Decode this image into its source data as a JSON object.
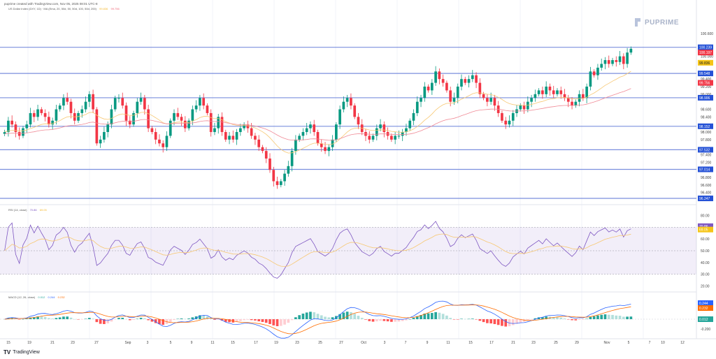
{
  "header": {
    "credit": "puprime created with TradingView.com, Nov 05, 2025 08:01 UTC-8",
    "main_legend": "US Dollar Index (DXY, 1D) · MA (Ema, 20, 50d, 50, 50d, 100, 50d, 200)",
    "ma_values": [
      {
        "text": "99.836",
        "color": "#f5b82e"
      },
      {
        "text": "99.756",
        "color": "#f06a7a"
      }
    ]
  },
  "logo": {
    "text": "PUPRIME"
  },
  "footer": {
    "brand": "TradingView"
  },
  "panes": {
    "rsi": {
      "label": "RSI (14, close)",
      "value": "70.86",
      "ma": "69.05",
      "value_color": "#7e57c2",
      "ma_color": "#f5b82e"
    },
    "macd": {
      "label": "MACD (12, 26, close)",
      "hist": "0.012",
      "macd": "0.244",
      "signal": "0.232",
      "hist_color": "#26a69a",
      "macd_color": "#2962ff",
      "signal_color": "#ff6d00"
    }
  },
  "chart_data": {
    "type": "candlestick",
    "title": "US Dollar Index Daily",
    "price_axis": {
      "min": 96.247,
      "max": 100.8,
      "ticks": [
        "100.600",
        "100.000",
        "99.600",
        "99.400",
        "99.200",
        "99.000",
        "98.600",
        "98.400",
        "98.000",
        "97.800",
        "97.400",
        "97.200",
        "96.800",
        "96.600",
        "96.400"
      ]
    },
    "horizontal_levels": [
      {
        "value": 100.239,
        "label": "100.239",
        "color": "#2962ff"
      },
      {
        "value": 99.548,
        "label": "99.548",
        "color": "#2962ff"
      },
      {
        "value": 98.906,
        "label": "98.906",
        "color": "#2962ff"
      },
      {
        "value": 98.152,
        "label": "98.152",
        "color": "#2962ff"
      },
      {
        "value": 97.532,
        "label": "97.532",
        "color": "#2962ff"
      },
      {
        "value": 97.014,
        "label": "97.014",
        "color": "#2962ff"
      },
      {
        "value": 96.247,
        "label": "96.247",
        "color": "#2962ff"
      }
    ],
    "price_badges": [
      {
        "label": "100.197",
        "color": "#f23645"
      },
      {
        "label": "99.836",
        "color": "#f5c518",
        "text_color": "#131722"
      },
      {
        "label": "99.756",
        "color": "#f23645"
      }
    ],
    "x_ticks": [
      "15",
      "19",
      "21",
      "23",
      "27",
      "Sep",
      "3",
      "5",
      "9",
      "11",
      "15",
      "17",
      "19",
      "23",
      "25",
      "27",
      "Oct",
      "3",
      "7",
      "9",
      "11",
      "15",
      "17",
      "21",
      "23",
      "25",
      "29",
      "Nov",
      "5",
      "7",
      "10",
      "12"
    ],
    "closes": [
      98.0,
      98.3,
      98.2,
      98.0,
      97.9,
      98.1,
      98.2,
      98.5,
      98.4,
      98.6,
      98.5,
      98.4,
      98.2,
      98.3,
      98.6,
      98.7,
      98.9,
      98.8,
      98.5,
      98.3,
      98.5,
      98.6,
      98.8,
      99.0,
      98.6,
      97.7,
      97.8,
      98.0,
      98.2,
      98.6,
      98.9,
      98.9,
      98.7,
      98.3,
      98.2,
      98.5,
      98.8,
      98.9,
      98.6,
      98.1,
      98.0,
      97.8,
      97.7,
      97.6,
      97.9,
      98.3,
      98.5,
      98.4,
      98.3,
      98.1,
      98.3,
      98.6,
      98.7,
      98.9,
      98.7,
      98.5,
      98.0,
      98.1,
      98.4,
      98.0,
      97.8,
      97.9,
      97.8,
      98.0,
      98.1,
      98.2,
      98.1,
      97.9,
      97.8,
      97.6,
      97.5,
      97.3,
      97.0,
      96.7,
      96.6,
      96.7,
      96.9,
      97.1,
      97.5,
      97.8,
      97.9,
      98.0,
      98.1,
      98.2,
      98.0,
      97.7,
      97.6,
      97.5,
      97.6,
      97.8,
      98.2,
      98.6,
      98.8,
      98.9,
      98.7,
      98.4,
      98.2,
      98.0,
      97.9,
      97.8,
      97.9,
      98.1,
      98.2,
      98.0,
      97.9,
      97.8,
      97.9,
      97.9,
      98.0,
      98.1,
      98.3,
      98.5,
      98.8,
      98.9,
      99.2,
      99.1,
      99.3,
      99.6,
      99.4,
      99.3,
      99.1,
      98.8,
      98.9,
      99.2,
      99.4,
      99.3,
      99.4,
      99.5,
      99.3,
      99.0,
      98.9,
      98.8,
      98.9,
      98.7,
      98.5,
      98.3,
      98.2,
      98.3,
      98.5,
      98.6,
      98.7,
      98.6,
      98.8,
      98.9,
      99.0,
      99.1,
      99.0,
      99.2,
      99.1,
      99.0,
      99.1,
      99.0,
      98.9,
      98.8,
      98.7,
      98.8,
      99.0,
      98.9,
      99.2,
      99.6,
      99.5,
      99.7,
      99.8,
      99.9,
      99.8,
      99.9,
      99.85,
      100.0,
      99.8,
      100.1,
      100.2
    ],
    "rsi": {
      "ylim": [
        20,
        80
      ],
      "ticks": [
        "80.00",
        "70.86",
        "69.05",
        "60.00",
        "50.00",
        "40.00",
        "30.00",
        "20.00"
      ],
      "overbought": 70,
      "oversold": 30
    },
    "macd": {
      "ticks": [
        "0.244",
        "0.232",
        "0.012",
        "-0.200"
      ]
    }
  }
}
